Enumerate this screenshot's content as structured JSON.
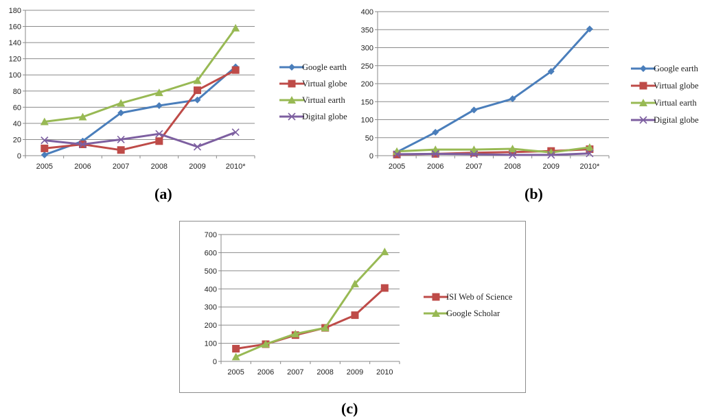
{
  "colors": {
    "blue": "#4a7ebb",
    "red": "#be4b48",
    "green": "#98b954",
    "purple": "#7d5fa0"
  },
  "chart_data": [
    {
      "id": "a",
      "type": "line",
      "caption": "(a)",
      "categories": [
        "2005",
        "2006",
        "2007",
        "2008",
        "2009",
        "2010*"
      ],
      "ylim": [
        0,
        180
      ],
      "yticks": [
        "0",
        "20",
        "40",
        "60",
        "80",
        "100",
        "120",
        "140",
        "160",
        "180"
      ],
      "grid": true,
      "legend": "right",
      "series": [
        {
          "name": "Google earth",
          "color": "#4a7ebb",
          "marker": "diamond",
          "values": [
            1,
            18,
            53,
            62,
            69,
            110
          ]
        },
        {
          "name": "Virtual globe",
          "color": "#be4b48",
          "marker": "square",
          "values": [
            9,
            14,
            7,
            18,
            81,
            106
          ]
        },
        {
          "name": "Virtual earth",
          "color": "#98b954",
          "marker": "triangle",
          "values": [
            42,
            48,
            65,
            78,
            93,
            158
          ]
        },
        {
          "name": "Digital globe",
          "color": "#7d5fa0",
          "marker": "x",
          "values": [
            19,
            14,
            20,
            27,
            11,
            29
          ]
        }
      ]
    },
    {
      "id": "b",
      "type": "line",
      "caption": "(b)",
      "categories": [
        "2005",
        "2006",
        "2007",
        "2008",
        "2009",
        "2010*"
      ],
      "ylim": [
        0,
        400
      ],
      "yticks": [
        "0",
        "50",
        "100",
        "150",
        "200",
        "250",
        "300",
        "350",
        "400"
      ],
      "grid": true,
      "legend": "right",
      "series": [
        {
          "name": "Google earth",
          "color": "#4a7ebb",
          "marker": "diamond",
          "values": [
            10,
            65,
            127,
            158,
            234,
            352
          ]
        },
        {
          "name": "Virtual globe",
          "color": "#be4b48",
          "marker": "square",
          "values": [
            3,
            5,
            8,
            10,
            13,
            18
          ]
        },
        {
          "name": "Virtual earth",
          "color": "#98b954",
          "marker": "triangle",
          "values": [
            12,
            17,
            17,
            19,
            9,
            23
          ]
        },
        {
          "name": "Digital globe",
          "color": "#7d5fa0",
          "marker": "x",
          "values": [
            4,
            5,
            4,
            2,
            2,
            6
          ]
        }
      ]
    },
    {
      "id": "c",
      "type": "line",
      "caption": "(c)",
      "categories": [
        "2005",
        "2006",
        "2007",
        "2008",
        "2009",
        "2010"
      ],
      "ylim": [
        0,
        700
      ],
      "yticks": [
        "0",
        "100",
        "200",
        "300",
        "400",
        "500",
        "600",
        "700"
      ],
      "grid": true,
      "legend": "right",
      "series": [
        {
          "name": "ISI Web of Science",
          "color": "#be4b48",
          "marker": "square",
          "values": [
            70,
            95,
            145,
            185,
            255,
            405
          ]
        },
        {
          "name": "Google Scholar",
          "color": "#98b954",
          "marker": "triangle",
          "values": [
            25,
            95,
            152,
            185,
            428,
            605
          ]
        }
      ]
    }
  ]
}
